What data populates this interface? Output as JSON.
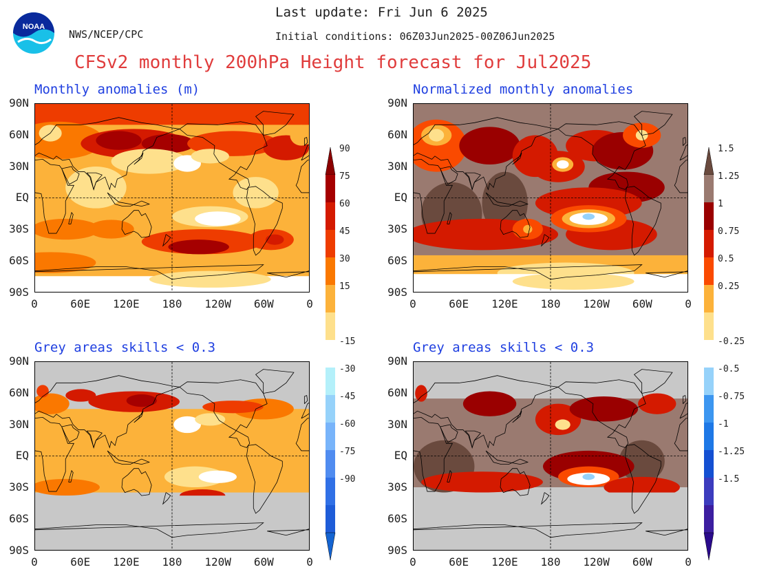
{
  "header": {
    "last_update": "Last update: Fri Jun 6 2025",
    "initial_conditions": "Initial conditions: 06Z03Jun2025-00Z06Jun2025",
    "org": "NWS/NCEP/CPC",
    "logo_text": "NOAA",
    "title": "CFSv2 monthly 200hPa Height forecast for Jul2025"
  },
  "panels": [
    {
      "id": "tl",
      "title": "Monthly anomalies (m)",
      "style": "anom"
    },
    {
      "id": "tr",
      "title": "Normalized monthly anomalies",
      "style": "norm"
    },
    {
      "id": "bl",
      "title": "Grey areas skills < 0.3",
      "style": "anom-masked"
    },
    {
      "id": "br",
      "title": "Grey areas skills < 0.3",
      "style": "norm-masked"
    }
  ],
  "lat_labels": [
    "90N",
    "60N",
    "30N",
    "EQ",
    "30S",
    "60S",
    "90S"
  ],
  "lon_labels": [
    "0",
    "60E",
    "120E",
    "180",
    "120W",
    "60W",
    "0"
  ],
  "colorbar_anom": {
    "labels": [
      "90",
      "75",
      "60",
      "45",
      "30",
      "15",
      "-15",
      "-30",
      "-45",
      "-60",
      "-75",
      "-90"
    ],
    "warm_colors": [
      "#a50000",
      "#d41a00",
      "#ee3c00",
      "#fa7800",
      "#fcb23a",
      "#fee08c"
    ],
    "cool_colors": [
      "#b4f0fa",
      "#96d2fa",
      "#78b4fa",
      "#508cf0",
      "#3070e6",
      "#1e5cd8"
    ],
    "top_color": "#8c0000",
    "bottom_color": "#1464d2"
  },
  "colorbar_norm": {
    "labels": [
      "1.5",
      "1.25",
      "1",
      "0.75",
      "0.5",
      "0.25",
      "-0.25",
      "-0.5",
      "-0.75",
      "-1",
      "-1.25",
      "-1.5"
    ],
    "warm_colors": [
      "#9a7a70",
      "#9a0000",
      "#d41a00",
      "#fa4a00",
      "#fcb23a",
      "#fee08c"
    ],
    "cool_colors": [
      "#96d2fa",
      "#3c96f0",
      "#1e78e6",
      "#1450d2",
      "#3c3cbe",
      "#3c1ea0"
    ],
    "top_color": "#6a4a3e",
    "bottom_color": "#2a0a8c"
  },
  "mask_color": "#c8c8c8"
}
